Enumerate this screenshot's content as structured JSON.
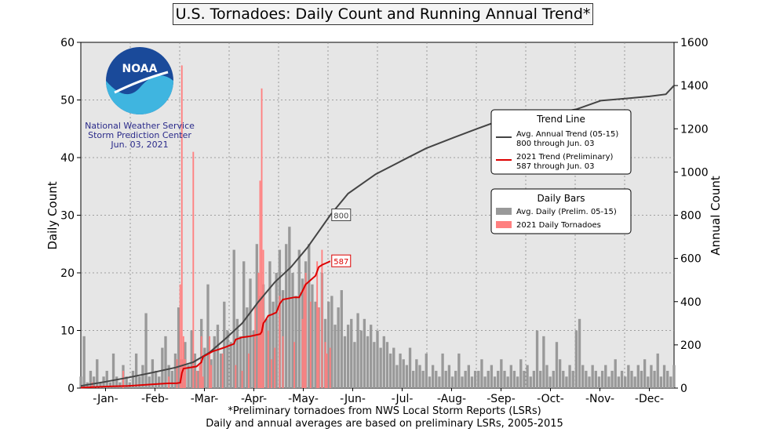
{
  "chart_data": {
    "type": "bar+line",
    "title": "U.S. Tornadoes: Daily Count and Running Annual Trend*",
    "ylabel": "Daily Count",
    "y2label": "Annual Count",
    "ylim": [
      0,
      60
    ],
    "y2lim": [
      0,
      1600
    ],
    "y_ticks": [
      0,
      10,
      20,
      30,
      40,
      50,
      60
    ],
    "y2_ticks": [
      0,
      200,
      400,
      600,
      800,
      1000,
      1200,
      1400,
      1600
    ],
    "x_range_days": [
      1,
      365
    ],
    "months": [
      "-Jan-",
      "-Feb-",
      "-Mar-",
      "-Apr-",
      "-May-",
      "-Jun-",
      "-Jul-",
      "-Aug-",
      "-Sep-",
      "-Oct-",
      "-Nov-",
      "-Dec-"
    ],
    "grid": true,
    "noaa_logo": {
      "text": "NOAA",
      "lines": [
        "National Weather Service",
        "Storm Prediction Center",
        "Jun. 03, 2021"
      ]
    },
    "legend_trend": {
      "title": "Trend Line",
      "items": [
        {
          "label": "Avg. Annual Trend (05-15)",
          "sub": "800 through Jun. 03",
          "color": "#444444"
        },
        {
          "label": "2021 Trend (Preliminary)",
          "sub": "587 through Jun. 03",
          "color": "#dd0000"
        }
      ]
    },
    "legend_bars": {
      "title": "Daily Bars",
      "items": [
        {
          "label": "Avg. Daily (Prelim. 05-15)",
          "color": "#999999"
        },
        {
          "label": "2021 Daily Tornadoes",
          "color": "#ff8080"
        }
      ]
    },
    "annotations": [
      {
        "text": "800",
        "day": 154,
        "value": 800,
        "color": "#444444"
      },
      {
        "text": "587",
        "day": 154,
        "value": 587,
        "color": "#dd0000"
      }
    ],
    "series": [
      {
        "name": "Avg. Annual Trend (05-15)",
        "kind": "line",
        "axis": "right",
        "color": "#444444",
        "x": [
          1,
          15,
          31,
          45,
          59,
          70,
          80,
          90,
          100,
          110,
          120,
          130,
          140,
          154,
          165,
          182,
          200,
          213,
          230,
          244,
          255,
          270,
          274,
          290,
          305,
          320,
          335,
          350,
          360,
          365
        ],
        "y": [
          10,
          28,
          50,
          72,
          95,
          120,
          165,
          230,
          300,
          400,
          490,
          560,
          650,
          800,
          900,
          990,
          1060,
          1110,
          1160,
          1200,
          1230,
          1250,
          1250,
          1270,
          1290,
          1330,
          1340,
          1350,
          1360,
          1400
        ]
      },
      {
        "name": "2021 Trend (Preliminary)",
        "kind": "line",
        "axis": "right",
        "color": "#dd0000",
        "x": [
          1,
          10,
          20,
          30,
          40,
          50,
          55,
          58,
          60,
          62,
          63,
          64,
          72,
          75,
          76,
          82,
          86,
          88,
          90,
          95,
          96,
          100,
          105,
          108,
          111,
          112,
          113,
          114,
          116,
          118,
          121,
          123,
          125,
          132,
          135,
          137,
          139,
          142,
          145,
          147,
          149,
          152,
          154
        ],
        "y": [
          2,
          5,
          8,
          10,
          15,
          20,
          22,
          22,
          23,
          25,
          70,
          90,
          100,
          120,
          145,
          170,
          180,
          185,
          190,
          205,
          225,
          235,
          240,
          245,
          250,
          260,
          300,
          310,
          335,
          340,
          350,
          390,
          410,
          420,
          420,
          450,
          480,
          500,
          520,
          560,
          570,
          580,
          587
        ]
      },
      {
        "name": "Avg. Daily (Prelim. 05-15)",
        "kind": "bar",
        "axis": "left",
        "color": "#999999",
        "x": [
          1,
          3,
          5,
          7,
          9,
          11,
          13,
          15,
          17,
          19,
          21,
          23,
          25,
          27,
          29,
          31,
          33,
          35,
          37,
          39,
          41,
          43,
          45,
          47,
          49,
          51,
          53,
          55,
          57,
          59,
          61,
          63,
          65,
          67,
          69,
          71,
          73,
          75,
          77,
          79,
          81,
          83,
          85,
          87,
          89,
          91,
          93,
          95,
          97,
          99,
          101,
          103,
          105,
          107,
          109,
          111,
          113,
          115,
          117,
          119,
          121,
          123,
          125,
          127,
          129,
          131,
          133,
          135,
          137,
          139,
          141,
          143,
          145,
          147,
          149,
          151,
          153,
          155,
          157,
          159,
          161,
          163,
          165,
          167,
          169,
          171,
          173,
          175,
          177,
          179,
          181,
          183,
          185,
          187,
          189,
          191,
          193,
          195,
          197,
          199,
          201,
          203,
          205,
          207,
          209,
          211,
          213,
          215,
          217,
          219,
          221,
          223,
          225,
          227,
          229,
          231,
          233,
          235,
          237,
          239,
          241,
          243,
          245,
          247,
          249,
          251,
          253,
          255,
          257,
          259,
          261,
          263,
          265,
          267,
          269,
          271,
          273,
          275,
          277,
          279,
          281,
          283,
          285,
          287,
          289,
          291,
          293,
          295,
          297,
          299,
          301,
          303,
          305,
          307,
          309,
          311,
          313,
          315,
          317,
          319,
          321,
          323,
          325,
          327,
          329,
          331,
          333,
          335,
          337,
          339,
          341,
          343,
          345,
          347,
          349,
          351,
          353,
          355,
          357,
          359,
          361,
          363,
          365
        ],
        "y": [
          2,
          9,
          1,
          3,
          2,
          5,
          1,
          2,
          3,
          1,
          6,
          2,
          1,
          4,
          2,
          1,
          3,
          6,
          2,
          4,
          13,
          2,
          5,
          3,
          2,
          7,
          9,
          4,
          3,
          6,
          14,
          5,
          8,
          4,
          10,
          6,
          3,
          12,
          7,
          18,
          5,
          9,
          11,
          6,
          15,
          10,
          8,
          24,
          12,
          9,
          22,
          14,
          19,
          10,
          25,
          16,
          18,
          12,
          22,
          15,
          20,
          24,
          17,
          25,
          28,
          20,
          16,
          24,
          19,
          22,
          25,
          18,
          15,
          14,
          20,
          12,
          15,
          16,
          11,
          14,
          17,
          9,
          11,
          12,
          8,
          13,
          10,
          12,
          9,
          11,
          8,
          10,
          7,
          9,
          8,
          6,
          7,
          4,
          6,
          5,
          4,
          7,
          3,
          5,
          4,
          3,
          6,
          2,
          4,
          3,
          2,
          6,
          3,
          4,
          2,
          3,
          6,
          2,
          3,
          4,
          2,
          3,
          3,
          5,
          2,
          3,
          4,
          2,
          3,
          5,
          3,
          2,
          4,
          3,
          2,
          5,
          3,
          4,
          2,
          3,
          10,
          3,
          9,
          4,
          2,
          3,
          8,
          5,
          3,
          2,
          4,
          3,
          10,
          12,
          4,
          3,
          2,
          4,
          3,
          2,
          3,
          4,
          2,
          3,
          5,
          2,
          3,
          2,
          4,
          3,
          2,
          4,
          3,
          5,
          2,
          4,
          3,
          6,
          2,
          4,
          3,
          2,
          4
        ]
      },
      {
        "name": "2021 Daily Tornadoes",
        "kind": "bar",
        "axis": "left",
        "color": "#ff8080",
        "x": [
          8,
          27,
          55,
          60,
          62,
          63,
          64,
          65,
          70,
          72,
          74,
          75,
          76,
          80,
          81,
          88,
          96,
          100,
          104,
          108,
          110,
          111,
          112,
          113,
          116,
          118,
          120,
          123,
          125,
          132,
          137,
          138,
          139,
          142,
          146,
          147,
          149,
          151,
          152,
          154
        ],
        "y": [
          1,
          3,
          2,
          5,
          18,
          56,
          9,
          5,
          41,
          3,
          4,
          9,
          2,
          9,
          4,
          6,
          4,
          3,
          6,
          14,
          20,
          36,
          52,
          24,
          10,
          5,
          7,
          16,
          9,
          8,
          12,
          18,
          20,
          15,
          22,
          14,
          24,
          8,
          6,
          7
        ]
      }
    ],
    "footnotes": [
      "*Preliminary tornadoes from NWS Local Storm Reports (LSRs)",
      "Daily and annual averages are based on preliminary LSRs, 2005-2015"
    ]
  }
}
